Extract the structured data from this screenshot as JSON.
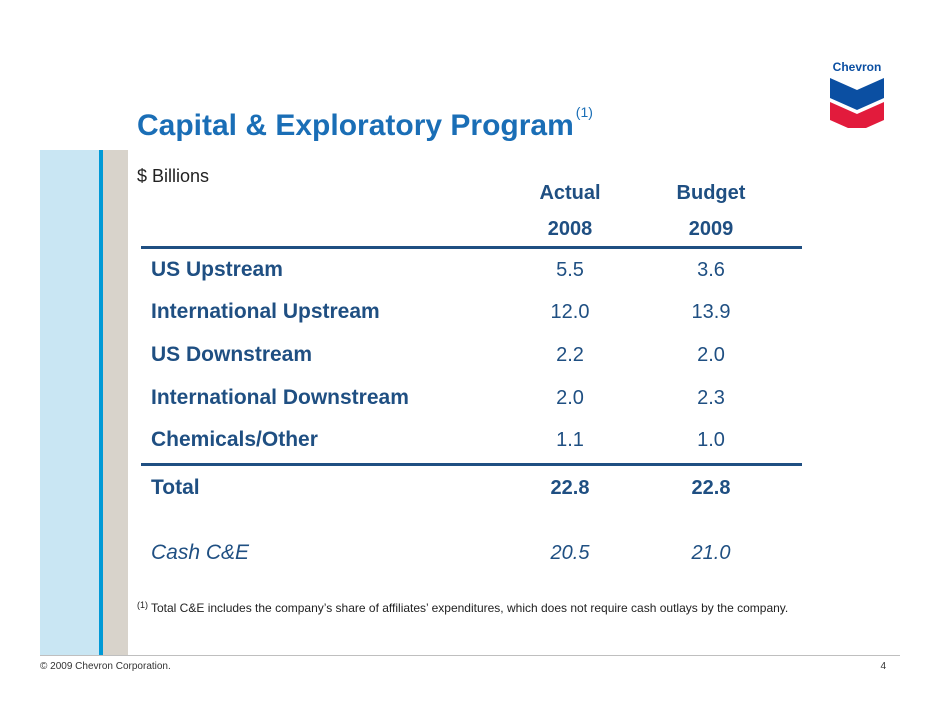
{
  "title": "Capital & Exploratory Program",
  "title_note": "(1)",
  "units": "$ Billions",
  "logo": {
    "text": "Chevron",
    "colors": {
      "blue": "#0b4fa2",
      "red": "#e21b3c"
    }
  },
  "columns": [
    {
      "line1": "Actual",
      "line2": "2008"
    },
    {
      "line1": "Budget",
      "line2": "2009"
    }
  ],
  "rows": [
    {
      "label": "US Upstream",
      "actual": "5.5",
      "budget": "3.6"
    },
    {
      "label": "International Upstream",
      "actual": "12.0",
      "budget": "13.9"
    },
    {
      "label": "US Downstream",
      "actual": "2.2",
      "budget": "2.0"
    },
    {
      "label": "International Downstream",
      "actual": "2.0",
      "budget": "2.3"
    },
    {
      "label": "Chemicals/Other",
      "actual": "1.1",
      "budget": "1.0"
    }
  ],
  "total": {
    "label": "Total",
    "actual": "22.8",
    "budget": "22.8"
  },
  "cash": {
    "label": "Cash C&E",
    "actual": "20.5",
    "budget": "21.0"
  },
  "footnote": {
    "marker": "(1)",
    "text": "Total C&E includes the company’s share of affiliates’ expenditures, which does not require cash outlays by the company."
  },
  "footer": {
    "copyright": "© 2009 Chevron Corporation.",
    "page": "4"
  },
  "colors": {
    "title": "#1a6eb6",
    "table": "#1f4f82",
    "strip_light": "#c9e6f3",
    "strip_blue": "#0099d6",
    "strip_gray": "#d8d3cb"
  }
}
